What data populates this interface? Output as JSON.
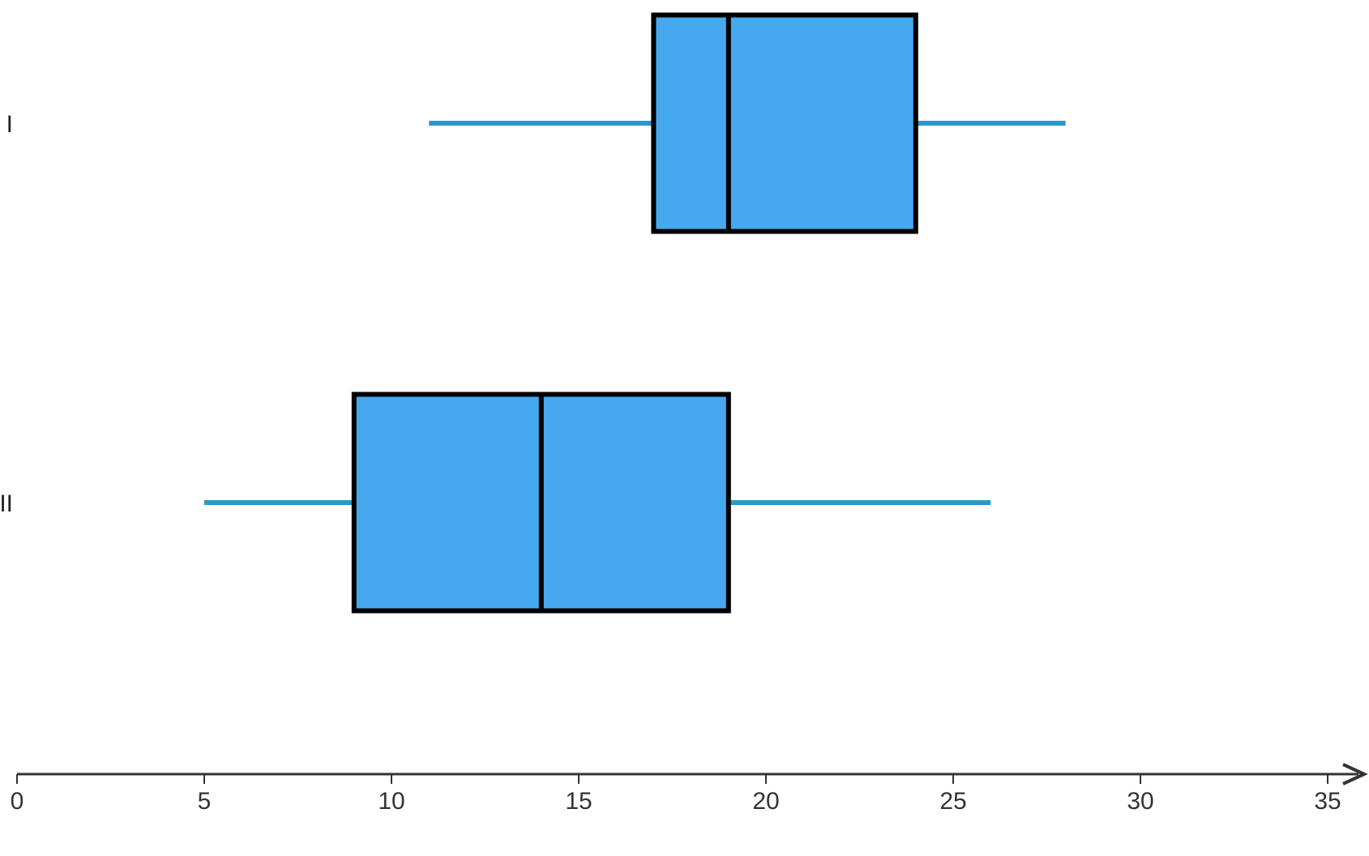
{
  "chart_data": {
    "type": "boxplot",
    "orientation": "horizontal",
    "categories": [
      "I",
      "II"
    ],
    "series": [
      {
        "category": "I",
        "min": 11,
        "q1": 17,
        "median": 19,
        "q3": 24,
        "max": 28
      },
      {
        "category": "II",
        "min": 5,
        "q1": 9,
        "median": 14,
        "q3": 19,
        "max": 26
      }
    ],
    "xlim": [
      0,
      35
    ],
    "xticks": [
      0,
      5,
      10,
      15,
      20,
      25,
      30,
      35
    ],
    "grid": false,
    "legend": "none",
    "title": "",
    "xlabel": "",
    "ylabel": ""
  },
  "colors": {
    "box_fill": "#46a9ef",
    "box_stroke": "#000000",
    "whisker": "#2f96c9",
    "axis": "#333333"
  }
}
